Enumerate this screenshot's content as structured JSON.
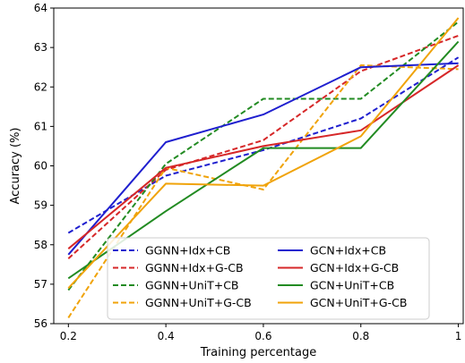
{
  "chart_data": {
    "type": "line",
    "title": "",
    "xlabel": "Training percentage",
    "ylabel": "Accuracy (%)",
    "xlim": [
      0.17,
      1.01
    ],
    "ylim": [
      56,
      64
    ],
    "xticks": [
      0.2,
      0.4,
      0.6,
      0.8,
      1
    ],
    "xtick_labels": [
      "0.2",
      "0.4",
      "0.6",
      "0.8",
      "1"
    ],
    "yticks": [
      56,
      57,
      58,
      59,
      60,
      61,
      62,
      63,
      64
    ],
    "ytick_labels": [
      "56",
      "57",
      "58",
      "59",
      "60",
      "61",
      "62",
      "63",
      "64"
    ],
    "grid": false,
    "legend_position": "bottom-center",
    "x": [
      0.2,
      0.4,
      0.6,
      0.8,
      1.0
    ],
    "series": [
      {
        "name": "GGNN+Idx+CB",
        "color": "#1f1fcf",
        "style": "dashed",
        "values": [
          58.3,
          59.75,
          60.4,
          61.2,
          62.75
        ]
      },
      {
        "name": "GGNN+Idx+G-CB",
        "color": "#d62728",
        "style": "dashed",
        "values": [
          57.65,
          59.9,
          60.65,
          62.4,
          63.3
        ]
      },
      {
        "name": "GGNN+UniT+CB",
        "color": "#228b22",
        "style": "dashed",
        "values": [
          56.85,
          60.05,
          61.7,
          61.7,
          63.65
        ]
      },
      {
        "name": "GGNN+UniT+G-CB",
        "color": "#f0a30a",
        "style": "dashed",
        "values": [
          56.15,
          59.95,
          59.4,
          62.55,
          62.45
        ]
      },
      {
        "name": "GCN+Idx+CB",
        "color": "#1f1fcf",
        "style": "solid",
        "values": [
          57.75,
          60.6,
          61.3,
          62.5,
          62.6
        ]
      },
      {
        "name": "GCN+Idx+G-CB",
        "color": "#d62728",
        "style": "solid",
        "values": [
          57.9,
          59.95,
          60.5,
          60.9,
          62.55
        ]
      },
      {
        "name": "GCN+UniT+CB",
        "color": "#228b22",
        "style": "solid",
        "values": [
          57.15,
          58.85,
          60.45,
          60.45,
          63.15
        ]
      },
      {
        "name": "GCN+UniT+G-CB",
        "color": "#f0a30a",
        "style": "solid",
        "values": [
          56.9,
          59.55,
          59.5,
          60.75,
          63.75
        ]
      }
    ]
  }
}
